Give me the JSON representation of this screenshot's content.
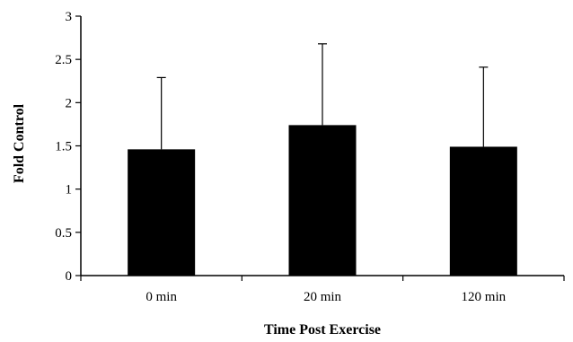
{
  "chart_data": {
    "type": "bar",
    "categories": [
      "0 min",
      "20 min",
      "120 min"
    ],
    "values": [
      1.46,
      1.74,
      1.49
    ],
    "error_upper": [
      2.29,
      2.68,
      2.41
    ],
    "xlabel": "Time Post Exercise",
    "ylabel": "Fold Control",
    "ylim": [
      0,
      3
    ],
    "yticks": [
      0,
      0.5,
      1,
      1.5,
      2,
      2.5,
      3
    ],
    "ytick_labels": [
      "0",
      "0.5",
      "1",
      "1.5",
      "2",
      "2.5",
      "3"
    ],
    "grid": false,
    "legend": "none",
    "bar_color": "#000000"
  }
}
